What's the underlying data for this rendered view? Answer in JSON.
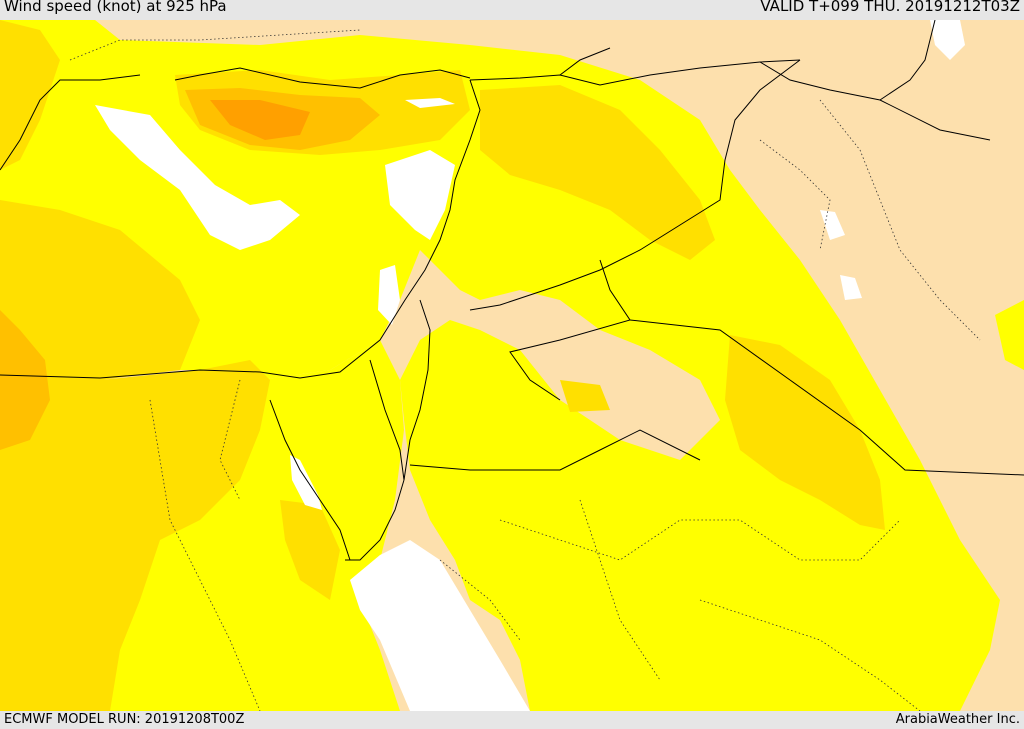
{
  "header": {
    "title": "Wind speed (knot) at 925 hPa",
    "valid": "VALID T+099 THU. 20191212T03Z"
  },
  "footer": {
    "model_run": "ECMWF MODEL RUN: 20191208T00Z",
    "credit": "ArabiaWeather Inc."
  },
  "colors": {
    "land_calm": "#fde0ad",
    "band_yellow": "#ffff00",
    "band_gold": "#ffe000",
    "band_orange": "#ffc000",
    "band_dark_orange": "#ffa000",
    "water": "#ffffff",
    "border": "#000000"
  }
}
